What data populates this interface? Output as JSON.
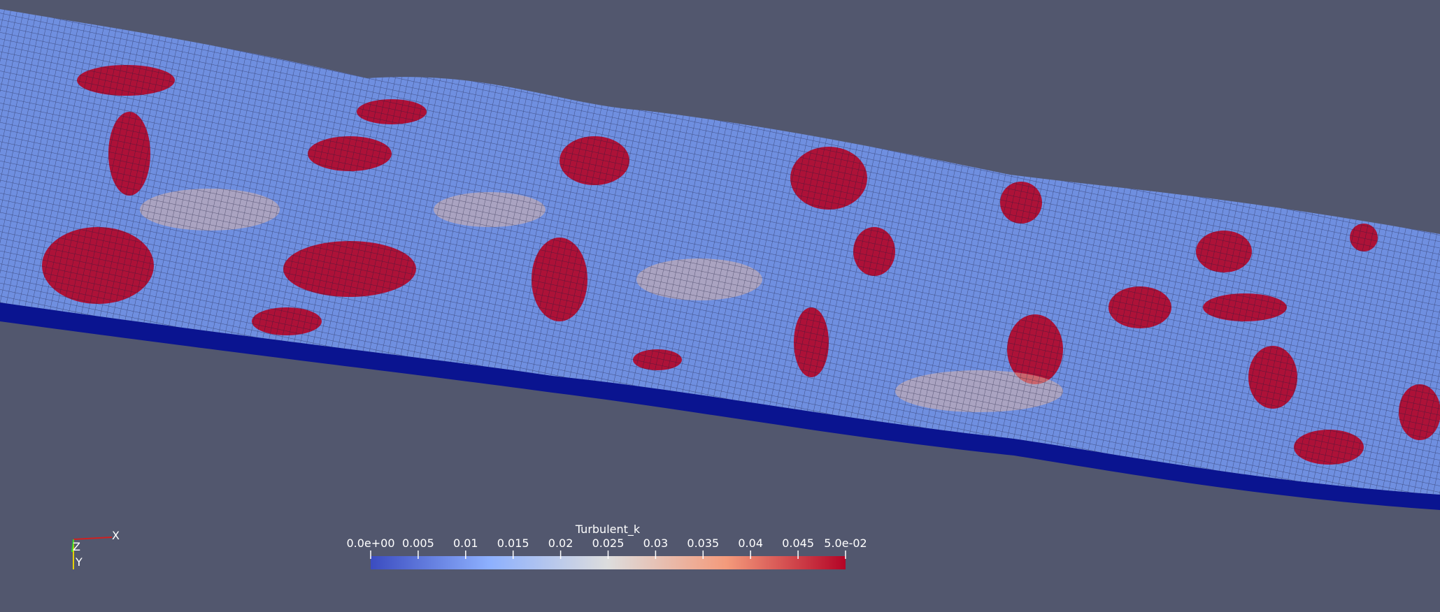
{
  "colorbar": {
    "title": "Turbulent_k",
    "range": [
      0,
      0.05
    ],
    "ticks": [
      {
        "value": 0,
        "label": "0.0e+00"
      },
      0.005,
      0.01,
      0.015,
      0.02,
      0.025,
      0.03,
      0.035,
      0.04,
      0.045,
      {
        "value": 0.05,
        "label": "5.0e-02"
      }
    ]
  },
  "orientation_axes": {
    "x": "X",
    "y": "Y",
    "z": "Z"
  }
}
